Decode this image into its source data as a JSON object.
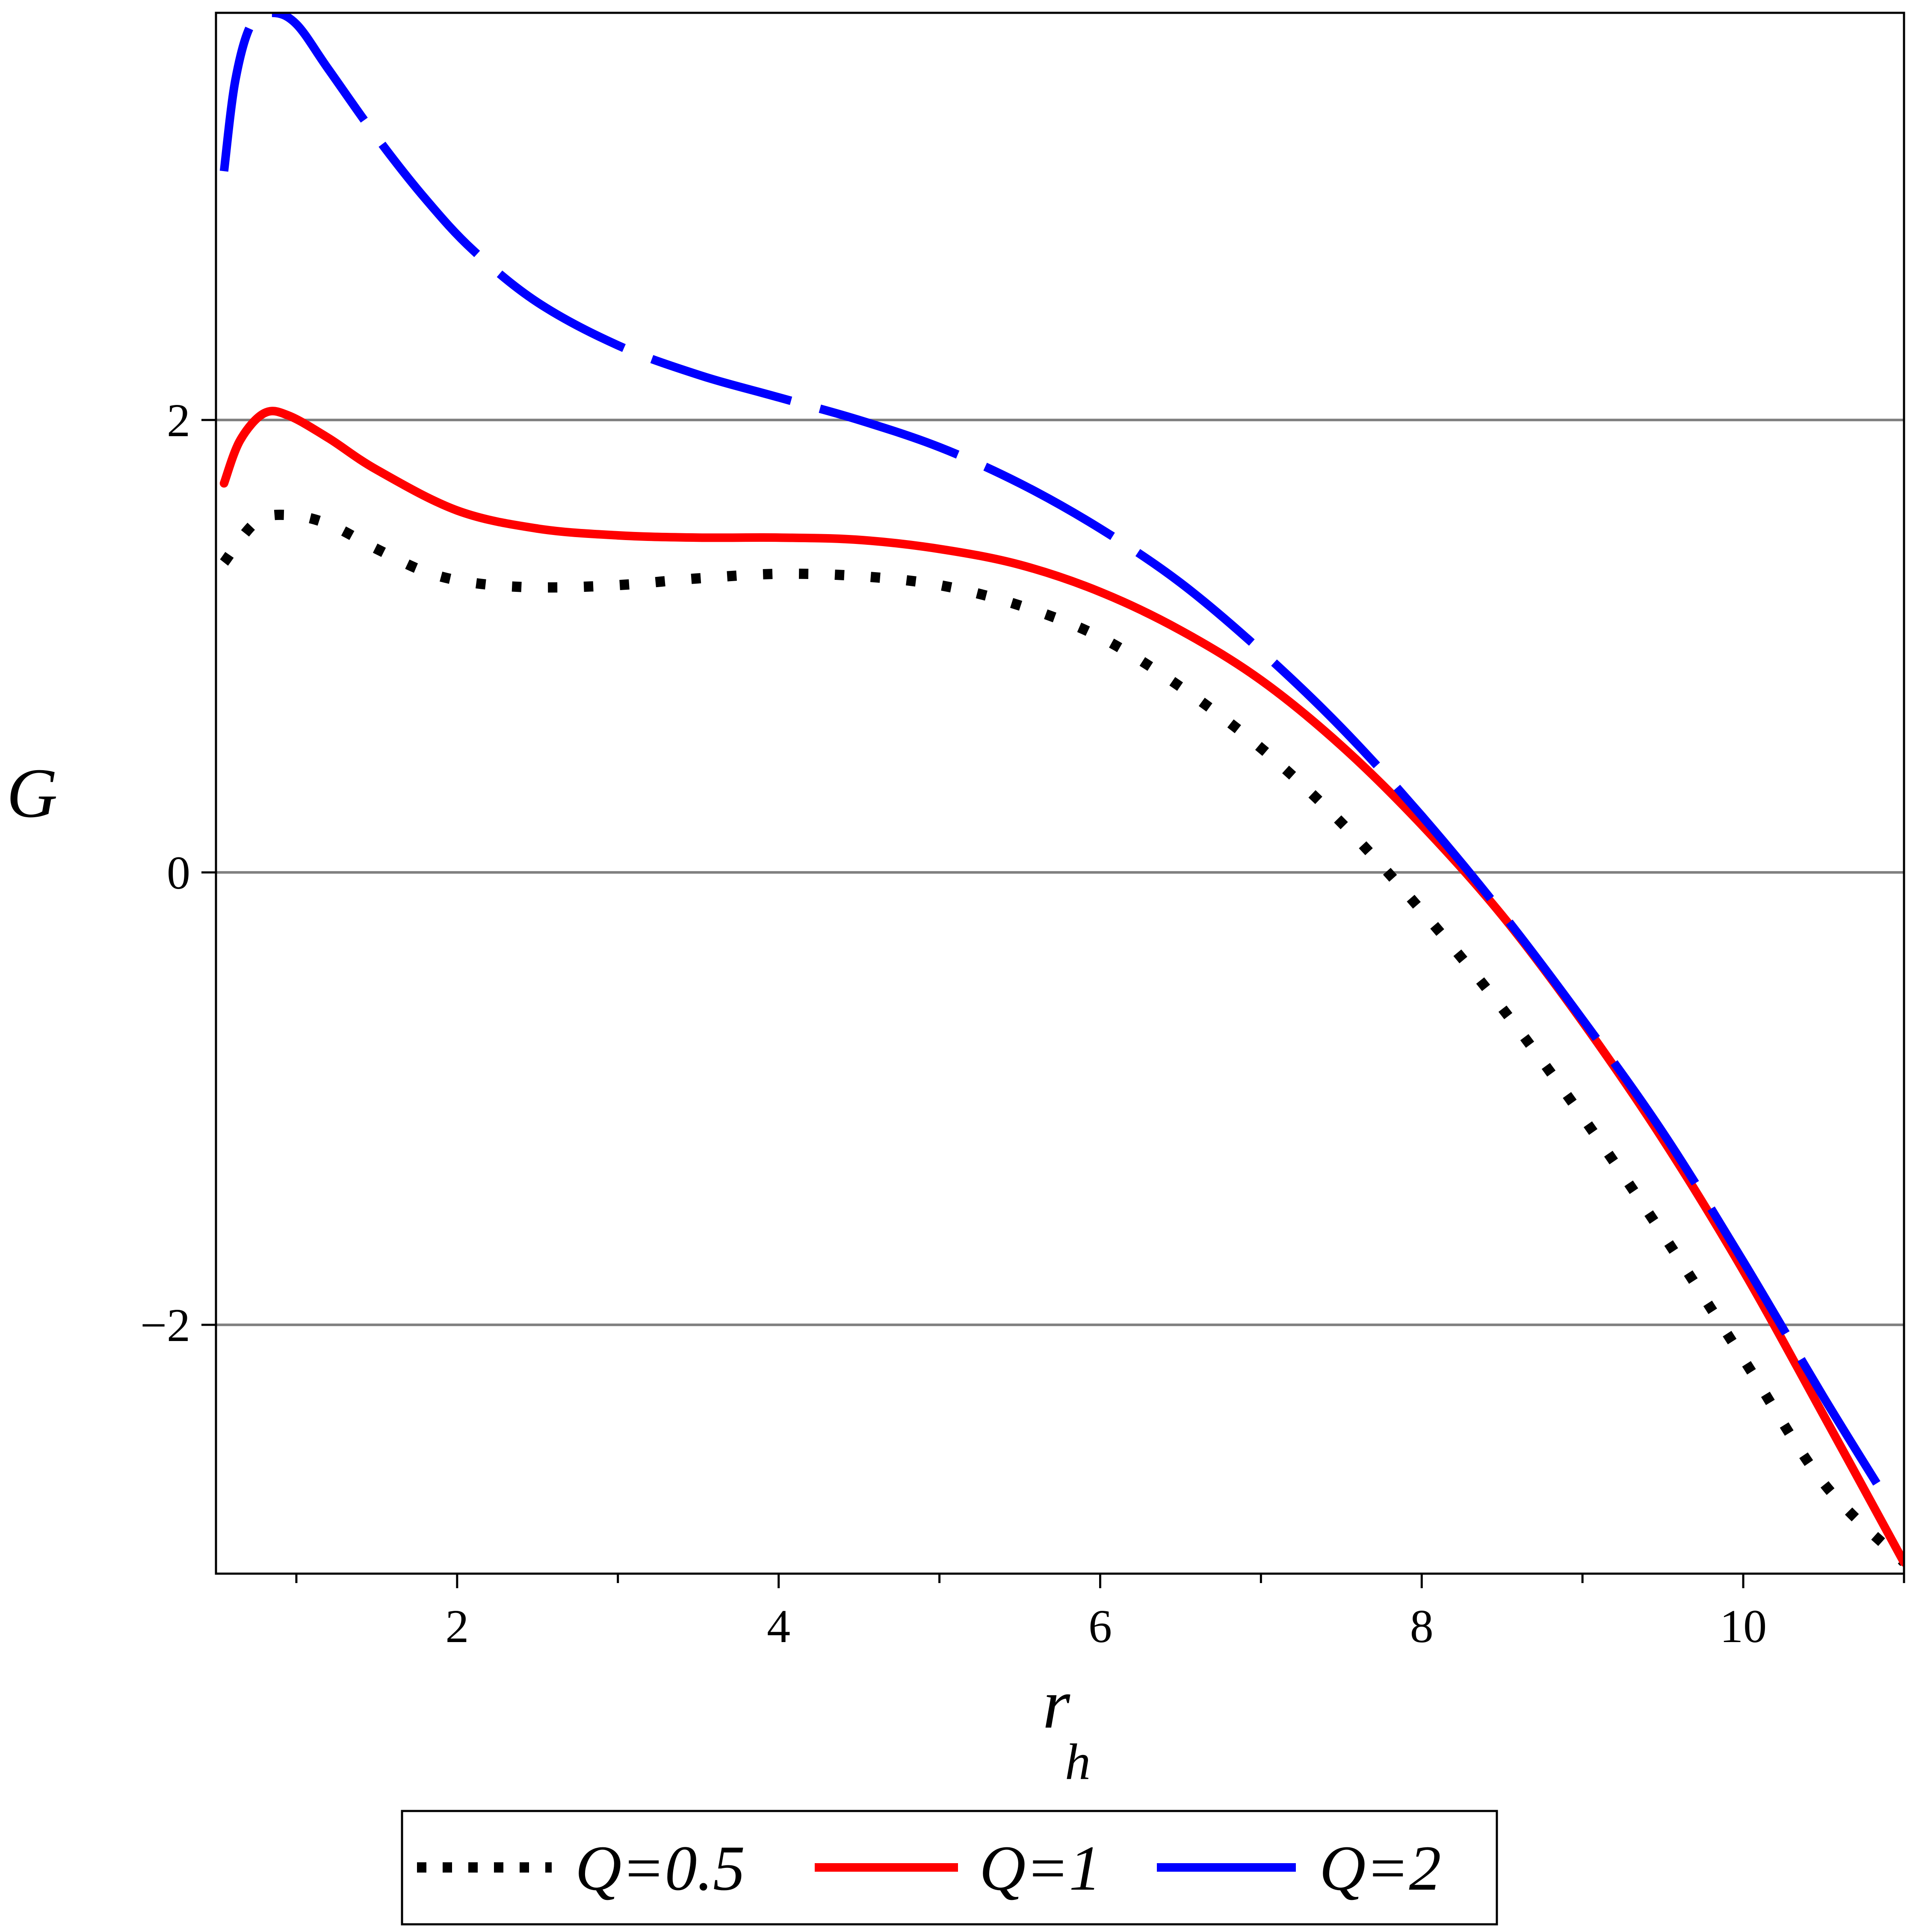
{
  "chart_data": {
    "type": "line",
    "xlabel": "r",
    "xlabel_sub": "h",
    "ylabel": "G",
    "xlim": [
      0.5,
      11.0
    ],
    "ylim": [
      -3.1,
      3.8
    ],
    "x_ticks": [
      2,
      4,
      6,
      8,
      10
    ],
    "x_tick_labels": [
      "2",
      "4",
      "6",
      "8",
      "10"
    ],
    "x_minor_ticks": [
      1,
      3,
      5,
      7,
      9,
      11
    ],
    "y_ticks": [
      -2,
      0,
      2
    ],
    "y_tick_labels": [
      "−2",
      "0",
      "2"
    ],
    "grid": "horizontal",
    "legend_position": "bottom",
    "series": [
      {
        "name": "Q=0.5",
        "color": "#000000",
        "style": "dotted",
        "x": [
          0.55,
          0.75,
          0.95,
          1.2,
          1.5,
          1.8,
          2.1,
          2.5,
          3.0,
          3.5,
          4.0,
          4.5,
          5.0,
          5.5,
          6.0,
          6.5,
          7.0,
          7.5,
          8.0,
          8.5,
          9.0,
          9.5,
          10.0,
          10.5,
          11.0
        ],
        "y": [
          1.37,
          1.55,
          1.58,
          1.54,
          1.43,
          1.33,
          1.28,
          1.26,
          1.27,
          1.3,
          1.32,
          1.31,
          1.27,
          1.18,
          1.04,
          0.82,
          0.55,
          0.22,
          -0.17,
          -0.6,
          -1.08,
          -1.6,
          -2.15,
          -2.7,
          -3.05
        ]
      },
      {
        "name": "Q=1",
        "color": "#ff0000",
        "style": "solid",
        "x": [
          0.55,
          0.65,
          0.8,
          0.95,
          1.2,
          1.5,
          2.0,
          2.5,
          3.0,
          3.5,
          4.0,
          4.5,
          5.0,
          5.5,
          6.0,
          6.5,
          7.0,
          7.5,
          8.0,
          8.5,
          9.0,
          9.5,
          10.0,
          10.5,
          11.0
        ],
        "y": [
          1.72,
          1.91,
          2.03,
          2.02,
          1.92,
          1.78,
          1.6,
          1.52,
          1.49,
          1.48,
          1.48,
          1.47,
          1.43,
          1.36,
          1.24,
          1.07,
          0.85,
          0.56,
          0.21,
          -0.19,
          -0.66,
          -1.18,
          -1.76,
          -2.4,
          -3.05
        ]
      },
      {
        "name": "Q=2",
        "color": "#0000ff",
        "style": "dashed",
        "x": [
          0.55,
          0.62,
          0.72,
          0.85,
          1.0,
          1.2,
          1.5,
          1.8,
          2.1,
          2.5,
          3.0,
          3.5,
          4.0,
          4.5,
          5.0,
          5.5,
          6.0,
          6.5,
          7.0,
          7.5,
          8.0,
          8.5,
          9.0,
          9.5,
          10.0,
          10.5,
          10.9
        ],
        "y": [
          3.1,
          3.5,
          3.75,
          3.8,
          3.75,
          3.55,
          3.25,
          2.98,
          2.75,
          2.52,
          2.33,
          2.2,
          2.1,
          2.0,
          1.88,
          1.72,
          1.52,
          1.28,
          0.98,
          0.64,
          0.25,
          -0.18,
          -0.65,
          -1.15,
          -1.72,
          -2.32,
          -2.78
        ]
      }
    ]
  }
}
